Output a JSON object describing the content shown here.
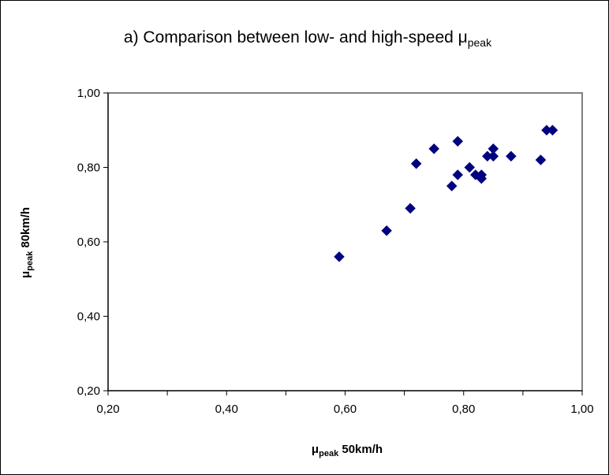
{
  "chart_data": {
    "type": "scatter",
    "title": {
      "main": "a) Comparison between low- and high-speed μ",
      "subscript": "peak"
    },
    "xlabel": {
      "symbol": "μ",
      "subscript": "peak",
      "suffix": " 50km/h"
    },
    "ylabel": {
      "symbol": "μ",
      "subscript": "peak",
      "suffix": " 80km/h"
    },
    "xlim": [
      0.2,
      1.0
    ],
    "ylim": [
      0.2,
      1.0
    ],
    "x_ticks": [
      0.2,
      0.4,
      0.6,
      0.8,
      1.0
    ],
    "y_ticks": [
      0.2,
      0.4,
      0.6,
      0.8,
      1.0
    ],
    "x_tick_labels": [
      "0,20",
      "0,40",
      "0,60",
      "0,80",
      "1,00"
    ],
    "y_tick_labels": [
      "0,20",
      "0,40",
      "0,60",
      "0,80",
      "1,00"
    ],
    "grid": false,
    "legend": false,
    "marker": "diamond",
    "marker_color": "#000080",
    "points": [
      {
        "x": 0.59,
        "y": 0.56
      },
      {
        "x": 0.67,
        "y": 0.63
      },
      {
        "x": 0.71,
        "y": 0.69
      },
      {
        "x": 0.72,
        "y": 0.81
      },
      {
        "x": 0.75,
        "y": 0.85
      },
      {
        "x": 0.78,
        "y": 0.75
      },
      {
        "x": 0.79,
        "y": 0.87
      },
      {
        "x": 0.79,
        "y": 0.78
      },
      {
        "x": 0.81,
        "y": 0.8
      },
      {
        "x": 0.82,
        "y": 0.78
      },
      {
        "x": 0.83,
        "y": 0.77
      },
      {
        "x": 0.83,
        "y": 0.78
      },
      {
        "x": 0.84,
        "y": 0.83
      },
      {
        "x": 0.85,
        "y": 0.85
      },
      {
        "x": 0.85,
        "y": 0.83
      },
      {
        "x": 0.88,
        "y": 0.83
      },
      {
        "x": 0.93,
        "y": 0.82
      },
      {
        "x": 0.94,
        "y": 0.9
      },
      {
        "x": 0.95,
        "y": 0.9
      }
    ]
  }
}
